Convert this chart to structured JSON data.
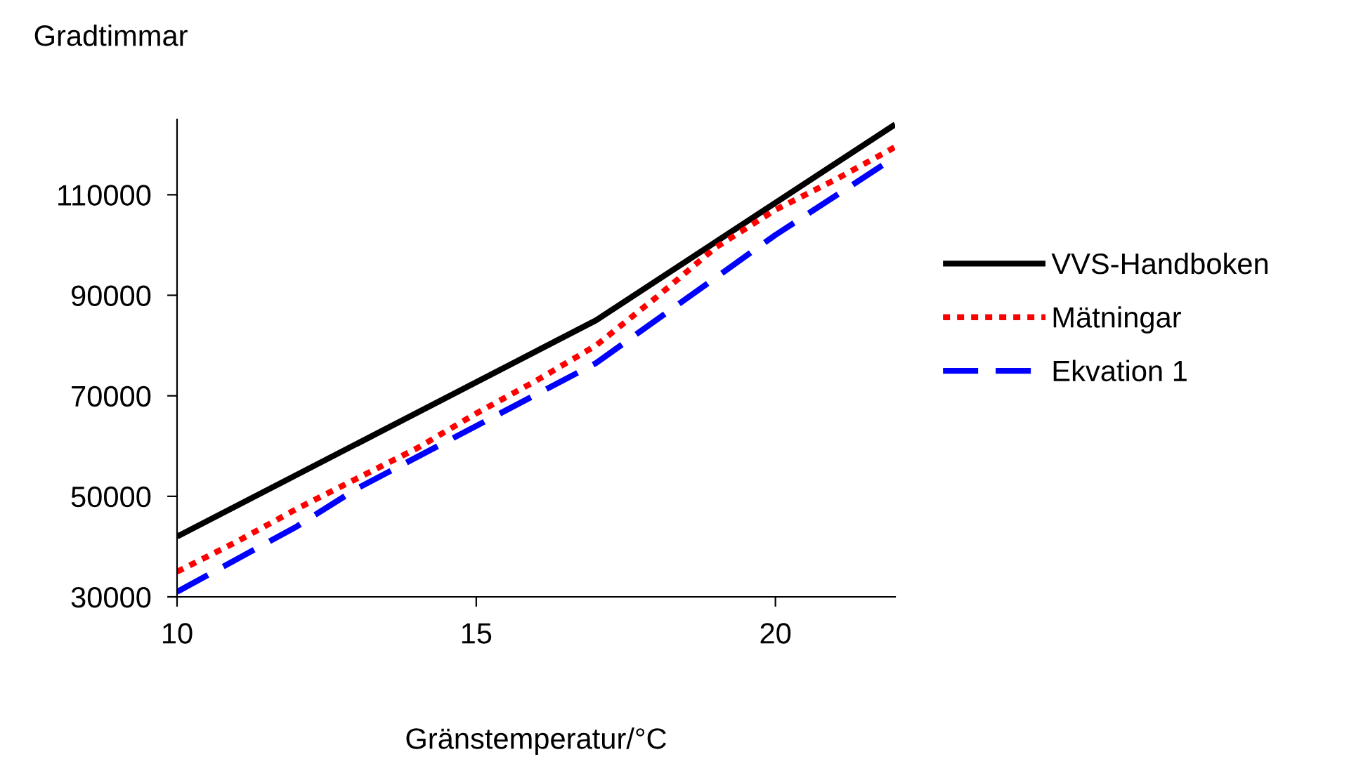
{
  "chart_data": {
    "type": "line",
    "ylabel": "Gradtimmar",
    "xlabel": "Gränstemperatur/°C",
    "xlim": [
      10,
      22
    ],
    "xticks": [
      10,
      15,
      20
    ],
    "ylim": [
      30000,
      125000
    ],
    "yticks": [
      30000,
      50000,
      70000,
      90000,
      110000
    ],
    "grid": false,
    "legend": "right",
    "marker": "none",
    "series": [
      {
        "name": "VVS-Handboken",
        "color": "#000000",
        "line_style": "solid",
        "x": [
          10,
          17,
          22
        ],
        "values": [
          42000,
          85000,
          124000
        ]
      },
      {
        "name": "Mätningar",
        "color": "#ff0000",
        "line_style": "dotted",
        "x": [
          10,
          11,
          12,
          13,
          14,
          15,
          16,
          17,
          18,
          19,
          20,
          21,
          22
        ],
        "values": [
          35000,
          41000,
          47500,
          53500,
          59500,
          66500,
          73000,
          80000,
          89500,
          99500,
          107000,
          113000,
          119500
        ]
      },
      {
        "name": "Ekvation 1",
        "color": "#0000ff",
        "line_style": "dashed",
        "x": [
          10,
          12,
          13,
          15,
          17,
          20,
          22
        ],
        "values": [
          31000,
          44000,
          51500,
          64000,
          76500,
          102000,
          117500
        ]
      }
    ]
  }
}
